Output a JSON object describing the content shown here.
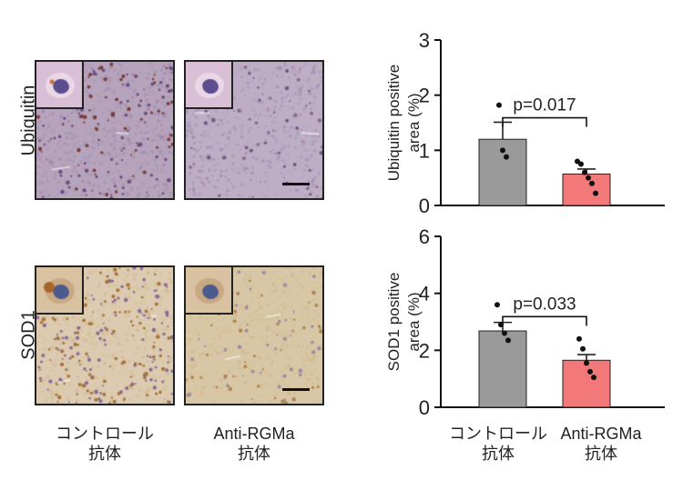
{
  "micrographs": {
    "row_labels": [
      "Ubiquitin",
      "SOD1"
    ],
    "columns": [
      {
        "line1": "コントロール",
        "line2": "抗体"
      },
      {
        "line1": "Anti-RGMa",
        "line2": "抗体"
      }
    ]
  },
  "colors": {
    "control_bar": "#9a9a9a",
    "anti_rgma_bar": "#f2787a",
    "ubiquitin_stain_bg": "#b6a3bc",
    "ubiquitin_stain_dot": "#7a3f3a",
    "sod1_stain_bg": "#dccbb1",
    "sod1_stain_dot": "#a8743a"
  },
  "chart_data": [
    {
      "type": "bar",
      "ylabel_line1": "Ubiquitin positive",
      "ylabel_line2": "area (%)",
      "ylim": [
        0,
        3
      ],
      "yticks": [
        0,
        1,
        2,
        3
      ],
      "categories": [
        "コントロール",
        "Anti-RGMa"
      ],
      "values": [
        1.2,
        0.57
      ],
      "errors": [
        0.31,
        0.09
      ],
      "points": [
        [
          1.82,
          1.0,
          0.88
        ],
        [
          0.8,
          0.75,
          0.6,
          0.5,
          0.4,
          0.22
        ]
      ],
      "annotation": "p=0.017"
    },
    {
      "type": "bar",
      "ylabel_line1": "SOD1 positive",
      "ylabel_line2": "area (%)",
      "ylim": [
        0,
        6
      ],
      "yticks": [
        0,
        2,
        4,
        6
      ],
      "categories": [
        "コントロール",
        "Anti-RGMa"
      ],
      "values": [
        2.68,
        1.65
      ],
      "errors": [
        0.3,
        0.2
      ],
      "points": [
        [
          3.6,
          2.9,
          2.6,
          2.35
        ],
        [
          2.4,
          2.05,
          1.55,
          1.25,
          1.05
        ]
      ],
      "annotation": "p=0.033"
    }
  ],
  "x_labels": [
    {
      "line1": "コントロール",
      "line2": "抗体"
    },
    {
      "line1": "Anti-RGMa",
      "line2": "抗体"
    }
  ]
}
